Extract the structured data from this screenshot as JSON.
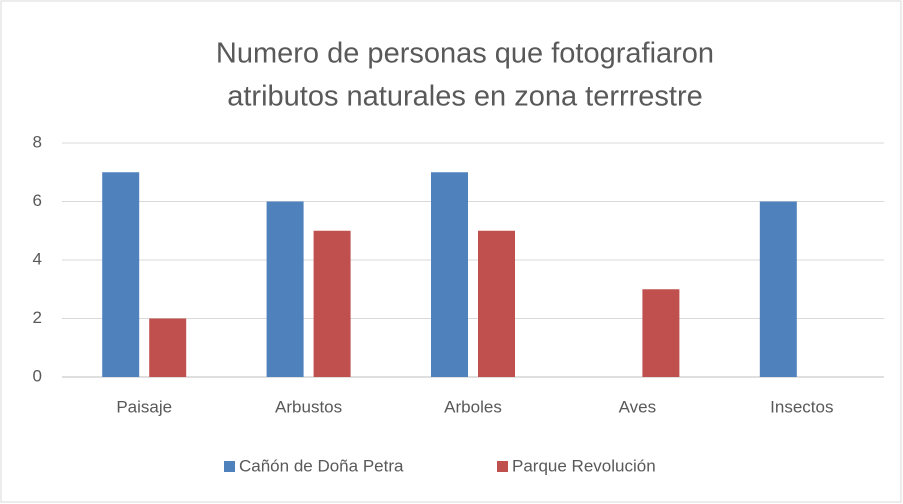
{
  "chart_data": {
    "type": "bar",
    "title": [
      "Numero de personas que fotografiaron",
      "atributos naturales en zona terrrestre"
    ],
    "categories": [
      "Paisaje",
      "Arbustos",
      "Arboles",
      "Aves",
      "Insectos"
    ],
    "series": [
      {
        "name": "Cañón de Doña Petra",
        "color": "#4f81bd",
        "values": [
          7,
          6,
          7,
          0,
          6
        ]
      },
      {
        "name": "Parque Revolución",
        "color": "#c0504d",
        "values": [
          2,
          5,
          5,
          3,
          0
        ]
      }
    ],
    "ylim": [
      0,
      8
    ],
    "yticks": [
      0,
      2,
      4,
      6,
      8
    ],
    "grid": true,
    "legend": "bottom"
  }
}
